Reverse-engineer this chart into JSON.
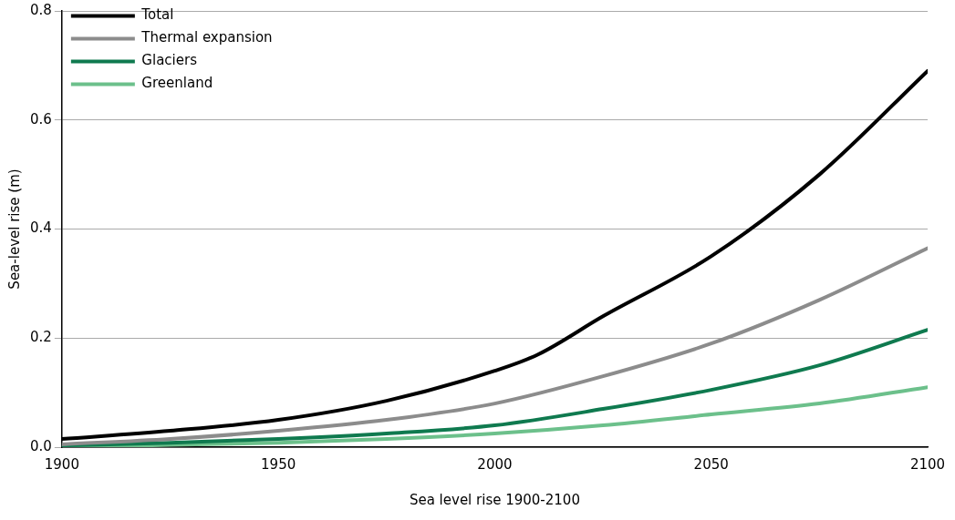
{
  "chart_data": {
    "type": "line",
    "xlabel": "Sea level rise 1900-2100",
    "ylabel": "Sea-level rise (m)",
    "xlim": [
      1900,
      2100
    ],
    "xticks": [
      1900,
      1950,
      2000,
      2050,
      2100
    ],
    "ylim": [
      0,
      0.8
    ],
    "yticks": [
      {
        "value": 0,
        "label": "0.0"
      },
      0.2,
      0.4,
      0.6,
      0.8
    ],
    "grid": "y",
    "legend": "top left",
    "marker": "none",
    "line_style": "solid",
    "series": [
      {
        "name": "Total",
        "color": "#000000",
        "x": [
          1900,
          1925,
          1950,
          1975,
          2000,
          2010,
          2025,
          2050,
          2075,
          2100
        ],
        "values": [
          0.015,
          0.03,
          0.05,
          0.085,
          0.14,
          0.17,
          0.24,
          0.35,
          0.5,
          0.69
        ]
      },
      {
        "name": "Thermal expansion",
        "color": "#8c8c8c",
        "x": [
          1900,
          1925,
          1950,
          1975,
          2000,
          2025,
          2050,
          2075,
          2100
        ],
        "values": [
          0.005,
          0.015,
          0.03,
          0.05,
          0.08,
          0.13,
          0.19,
          0.27,
          0.365
        ]
      },
      {
        "name": "Glaciers",
        "color": "#0f7a4f",
        "x": [
          1900,
          1925,
          1950,
          1975,
          2000,
          2025,
          2050,
          2075,
          2100
        ],
        "values": [
          0.003,
          0.008,
          0.015,
          0.025,
          0.04,
          0.07,
          0.105,
          0.15,
          0.215
        ]
      },
      {
        "name": "Greenland",
        "color": "#6cc08b",
        "x": [
          1900,
          1925,
          1950,
          1975,
          2000,
          2025,
          2050,
          2075,
          2100
        ],
        "values": [
          0,
          0.004,
          0.008,
          0.015,
          0.025,
          0.04,
          0.06,
          0.08,
          0.11
        ]
      }
    ]
  }
}
